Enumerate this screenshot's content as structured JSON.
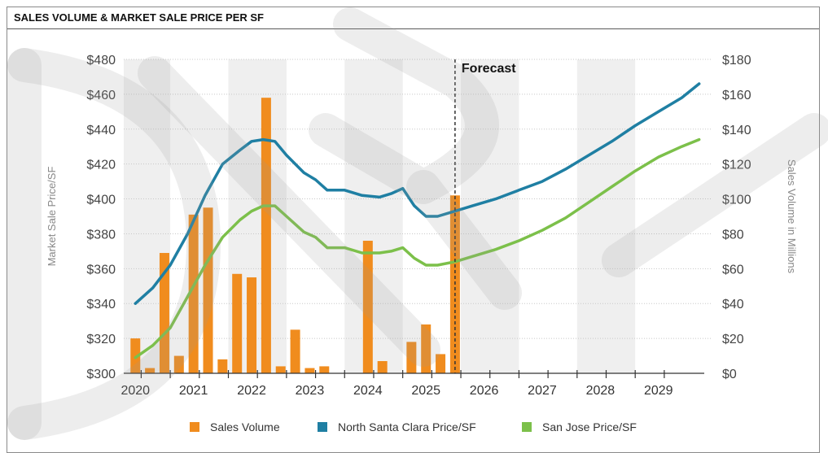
{
  "chart_data": {
    "type": "bar+line",
    "title": "SALES VOLUME & MARKET SALE PRICE PER SF",
    "ylabel_left": "Market Sale Price/SF",
    "ylabel_right": "Sales Volume in Millions",
    "ylim_left": [
      300,
      480
    ],
    "ylim_right": [
      0,
      180
    ],
    "left_ticks": [
      "$480",
      "$460",
      "$440",
      "$420",
      "$400",
      "$380",
      "$360",
      "$340",
      "$320",
      "$300"
    ],
    "left_tick_values": [
      480,
      460,
      440,
      420,
      400,
      380,
      360,
      340,
      320,
      300
    ],
    "right_ticks": [
      "$180",
      "$160",
      "$140",
      "$120",
      "$100",
      "$80",
      "$60",
      "$40",
      "$20",
      "$0"
    ],
    "right_tick_values": [
      180,
      160,
      140,
      120,
      100,
      80,
      60,
      40,
      20,
      0
    ],
    "x_range": [
      2019.8,
      2029.9
    ],
    "year_labels": [
      "2020",
      "2021",
      "2022",
      "2023",
      "2024",
      "2025",
      "2026",
      "2027",
      "2028",
      "2029"
    ],
    "year_values": [
      2020,
      2021,
      2022,
      2023,
      2024,
      2025,
      2026,
      2027,
      2028,
      2029
    ],
    "forecast_label": "Forecast",
    "forecast_x": 2025.5,
    "bars": {
      "name": "Sales Volume",
      "color": "#f08c1e",
      "x": [
        2020.0,
        2020.25,
        2020.5,
        2020.75,
        2021.0,
        2021.25,
        2021.5,
        2021.75,
        2022.0,
        2022.25,
        2022.5,
        2022.75,
        2023.0,
        2023.25,
        2023.5,
        2023.75,
        2024.0,
        2024.25,
        2024.5,
        2024.75,
        2025.0,
        2025.25,
        2025.5
      ],
      "values": [
        20,
        3,
        69,
        10,
        91,
        95,
        8,
        57,
        55,
        158,
        4,
        25,
        3,
        4,
        0,
        0,
        76,
        7,
        0,
        18,
        28,
        11,
        102
      ]
    },
    "series": [
      {
        "name": "North Santa Clara Price/SF",
        "color": "#1f7fa3",
        "x": [
          2020.0,
          2020.3,
          2020.6,
          2020.9,
          2021.2,
          2021.5,
          2021.8,
          2022.0,
          2022.2,
          2022.4,
          2022.6,
          2022.9,
          2023.1,
          2023.3,
          2023.6,
          2023.9,
          2024.2,
          2024.4,
          2024.6,
          2024.8,
          2025.0,
          2025.2,
          2025.5,
          2025.8,
          2026.2,
          2026.6,
          2027.0,
          2027.4,
          2027.8,
          2028.2,
          2028.6,
          2029.0,
          2029.4,
          2029.7
        ],
        "values": [
          340,
          349,
          362,
          380,
          402,
          420,
          428,
          433,
          434,
          433,
          425,
          415,
          411,
          405,
          405,
          402,
          401,
          403,
          406,
          396,
          390,
          390,
          393,
          396,
          400,
          405,
          410,
          417,
          425,
          433,
          442,
          450,
          458,
          466
        ]
      },
      {
        "name": "San Jose Price/SF",
        "color": "#7cc04a",
        "x": [
          2020.0,
          2020.3,
          2020.6,
          2020.9,
          2021.2,
          2021.5,
          2021.8,
          2022.0,
          2022.2,
          2022.4,
          2022.6,
          2022.9,
          2023.1,
          2023.3,
          2023.6,
          2023.9,
          2024.2,
          2024.4,
          2024.6,
          2024.8,
          2025.0,
          2025.2,
          2025.5,
          2025.8,
          2026.2,
          2026.6,
          2027.0,
          2027.4,
          2027.8,
          2028.2,
          2028.6,
          2029.0,
          2029.4,
          2029.7
        ],
        "values": [
          309,
          316,
          326,
          344,
          362,
          378,
          388,
          393,
          396,
          396,
          390,
          381,
          378,
          372,
          372,
          369,
          369,
          370,
          372,
          366,
          362,
          362,
          364,
          367,
          371,
          376,
          382,
          389,
          398,
          407,
          416,
          424,
          430,
          434
        ]
      }
    ],
    "legend": [
      "Sales Volume",
      "North Santa Clara Price/SF",
      "San Jose Price/SF"
    ],
    "legend_position": "bottom-center",
    "grid": true
  }
}
